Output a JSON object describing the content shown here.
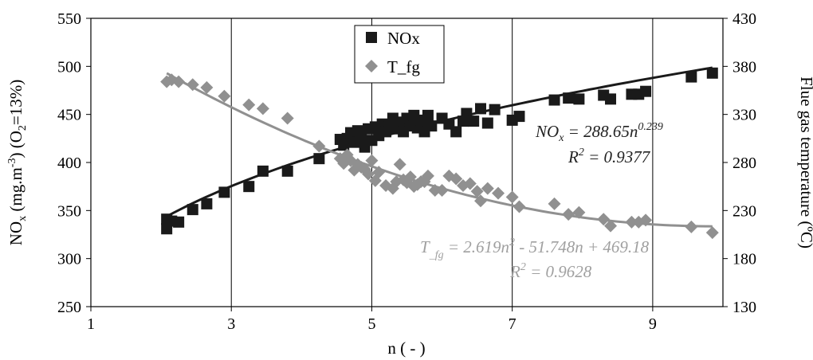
{
  "chart_data": {
    "type": "scatter",
    "x_axis": {
      "label": "n ( - )",
      "range": [
        1,
        10
      ],
      "ticks": [
        1,
        3,
        5,
        7,
        9
      ],
      "tick_labels": [
        "1",
        "3",
        "5",
        "7",
        "9"
      ]
    },
    "y_axis_left": {
      "label_parts": [
        "NO",
        "x",
        " (mg.m",
        "-3",
        ") (O",
        "2",
        "=13%)"
      ],
      "range": [
        250,
        550
      ],
      "ticks": [
        250,
        300,
        350,
        400,
        450,
        500,
        550
      ],
      "tick_labels": [
        "250",
        "300",
        "350",
        "400",
        "450",
        "500",
        "550"
      ]
    },
    "y_axis_right": {
      "label": "Flue gas temperature (ºC)",
      "range": [
        130,
        430
      ],
      "ticks": [
        130,
        180,
        230,
        280,
        330,
        380,
        430
      ],
      "tick_labels": [
        "130",
        "180",
        "230",
        "280",
        "330",
        "380",
        "430"
      ]
    },
    "grid": "vertical major gridlines at x ticks",
    "legend": {
      "placement": "top-center",
      "entries": [
        "NOx",
        "T_fg"
      ]
    },
    "series": [
      {
        "name": "NOx",
        "axis": "left",
        "marker": "square",
        "color": "#1a1a1a",
        "points": [
          [
            2.08,
            341
          ],
          [
            2.08,
            331
          ],
          [
            2.15,
            339
          ],
          [
            2.25,
            338
          ],
          [
            2.45,
            351
          ],
          [
            2.65,
            357
          ],
          [
            2.9,
            369
          ],
          [
            3.25,
            375
          ],
          [
            3.45,
            391
          ],
          [
            3.8,
            391
          ],
          [
            4.25,
            404
          ],
          [
            4.55,
            424
          ],
          [
            4.6,
            418
          ],
          [
            4.65,
            425
          ],
          [
            4.7,
            431
          ],
          [
            4.75,
            421
          ],
          [
            4.8,
            433
          ],
          [
            4.85,
            425
          ],
          [
            4.9,
            416
          ],
          [
            4.95,
            435
          ],
          [
            5.0,
            423
          ],
          [
            5.05,
            437
          ],
          [
            5.1,
            428
          ],
          [
            5.15,
            440
          ],
          [
            5.2,
            432
          ],
          [
            5.25,
            437
          ],
          [
            5.3,
            446
          ],
          [
            5.35,
            435
          ],
          [
            5.4,
            442
          ],
          [
            5.45,
            432
          ],
          [
            5.5,
            446
          ],
          [
            5.55,
            438
          ],
          [
            5.6,
            449
          ],
          [
            5.65,
            436
          ],
          [
            5.7,
            444
          ],
          [
            5.75,
            432
          ],
          [
            5.8,
            449
          ],
          [
            5.85,
            438
          ],
          [
            6.0,
            446
          ],
          [
            6.1,
            440
          ],
          [
            6.2,
            432
          ],
          [
            6.3,
            443
          ],
          [
            6.35,
            451
          ],
          [
            6.45,
            443
          ],
          [
            6.55,
            456
          ],
          [
            6.65,
            441
          ],
          [
            6.75,
            455
          ],
          [
            7.0,
            444
          ],
          [
            7.1,
            448
          ],
          [
            7.6,
            465
          ],
          [
            7.8,
            467
          ],
          [
            7.95,
            466
          ],
          [
            8.3,
            470
          ],
          [
            8.4,
            466
          ],
          [
            8.7,
            471
          ],
          [
            8.8,
            471
          ],
          [
            8.9,
            474
          ],
          [
            9.55,
            489
          ],
          [
            9.85,
            493
          ]
        ],
        "fit": {
          "type": "power",
          "equation_parts": [
            "NO",
            "x",
            " = 288.65n",
            "0.239"
          ],
          "r2_parts": [
            "R",
            "2",
            " = 0.9377"
          ],
          "a": 288.65,
          "b": 0.239,
          "x_range": [
            2.08,
            9.85
          ],
          "color": "#1a1a1a"
        }
      },
      {
        "name": "T_fg",
        "axis": "right",
        "marker": "diamond",
        "color": "#909090",
        "points": [
          [
            2.08,
            364
          ],
          [
            2.15,
            366
          ],
          [
            2.25,
            364
          ],
          [
            2.45,
            361
          ],
          [
            2.65,
            358
          ],
          [
            2.9,
            349
          ],
          [
            3.25,
            340
          ],
          [
            3.45,
            336
          ],
          [
            3.8,
            326
          ],
          [
            4.25,
            297
          ],
          [
            4.55,
            284
          ],
          [
            4.6,
            279
          ],
          [
            4.65,
            288
          ],
          [
            4.7,
            282
          ],
          [
            4.75,
            272
          ],
          [
            4.8,
            278
          ],
          [
            4.85,
            275
          ],
          [
            4.9,
            273
          ],
          [
            4.95,
            268
          ],
          [
            5.0,
            282
          ],
          [
            5.05,
            261
          ],
          [
            5.1,
            270
          ],
          [
            5.2,
            256
          ],
          [
            5.3,
            253
          ],
          [
            5.35,
            260
          ],
          [
            5.4,
            278
          ],
          [
            5.45,
            262
          ],
          [
            5.5,
            259
          ],
          [
            5.55,
            265
          ],
          [
            5.6,
            255
          ],
          [
            5.65,
            257
          ],
          [
            5.7,
            260
          ],
          [
            5.75,
            260
          ],
          [
            5.8,
            266
          ],
          [
            5.9,
            251
          ],
          [
            6.0,
            251
          ],
          [
            6.1,
            266
          ],
          [
            6.2,
            263
          ],
          [
            6.3,
            256
          ],
          [
            6.4,
            258
          ],
          [
            6.5,
            250
          ],
          [
            6.55,
            240
          ],
          [
            6.65,
            253
          ],
          [
            6.8,
            248
          ],
          [
            7.0,
            244
          ],
          [
            7.1,
            234
          ],
          [
            7.6,
            237
          ],
          [
            7.8,
            226
          ],
          [
            7.95,
            228
          ],
          [
            8.3,
            221
          ],
          [
            8.4,
            214
          ],
          [
            8.7,
            218
          ],
          [
            8.8,
            218
          ],
          [
            8.9,
            220
          ],
          [
            9.55,
            213
          ],
          [
            9.85,
            207
          ]
        ],
        "fit": {
          "type": "polynomial",
          "equation_parts": [
            "T",
            "_fg",
            " = 2.619n",
            "2",
            " - 51.748n + 469.18"
          ],
          "r2_parts": [
            "R",
            "2",
            " = 0.9628"
          ],
          "coefficients": [
            2.619,
            -51.748,
            469.18
          ],
          "x_range": [
            2.08,
            9.85
          ],
          "color": "#909090"
        }
      }
    ]
  }
}
